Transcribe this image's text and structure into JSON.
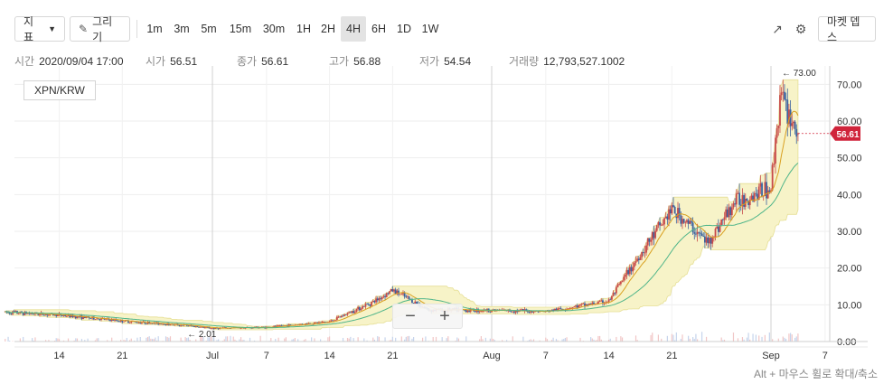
{
  "toolbar": {
    "indicator_label": "지표",
    "draw_label": "그리기",
    "intervals": [
      "1m",
      "3m",
      "5m",
      "15m",
      "30m",
      "1H",
      "2H",
      "4H",
      "6H",
      "1D",
      "1W"
    ],
    "active_interval": "4H",
    "market_depth_label": "마켓 뎁스"
  },
  "info": {
    "time_label": "시간",
    "time_value": "2020/09/04 17:00",
    "open_label": "시가",
    "open_value": "56.51",
    "close_label": "종가",
    "close_value": "56.61",
    "high_label": "고가",
    "high_value": "56.88",
    "low_label": "저가",
    "low_value": "54.54",
    "volume_label": "거래량",
    "volume_value": "12,793,527.1002"
  },
  "pair": "XPN/KRW",
  "footer_hint": "Alt + 마우스 휠로 확대/축소",
  "zoom": {
    "minus": "−",
    "plus": "+"
  },
  "colors": {
    "up": "#c84a4a",
    "down": "#3a62a0",
    "ma_fast": "#d9a020",
    "ma_slow": "#4fb58a",
    "cloud": "#f7f3c8",
    "price_tag": "#d0243b"
  },
  "chart_data": {
    "type": "candlestick",
    "y_ticks": [
      "0.00",
      "10.00",
      "20.00",
      "30.00",
      "40.00",
      "50.00",
      "60.00",
      "70.00"
    ],
    "ylim": [
      0,
      75
    ],
    "x_ticks": [
      "14",
      "21",
      "Jul",
      "7",
      "14",
      "21",
      "Aug",
      "7",
      "14",
      "21",
      "Sep",
      "7"
    ],
    "current_price": "56.61",
    "max_annotation": {
      "label": "73.00",
      "value": 73.0
    },
    "min_annotation": {
      "label": "2.01",
      "value": 2.01
    },
    "key_points": [
      {
        "date": "2020-06-08",
        "price": 8.0
      },
      {
        "date": "2020-06-14",
        "price": 7.2
      },
      {
        "date": "2020-06-21",
        "price": 5.6
      },
      {
        "date": "2020-06-28",
        "price": 4.4
      },
      {
        "date": "2020-07-01",
        "price": 3.6
      },
      {
        "date": "2020-07-07",
        "price": 3.9
      },
      {
        "date": "2020-07-14",
        "price": 5.4
      },
      {
        "date": "2020-07-19",
        "price": 11.0
      },
      {
        "date": "2020-07-21",
        "price": 14.0
      },
      {
        "date": "2020-07-25",
        "price": 8.6
      },
      {
        "date": "2020-08-01",
        "price": 8.5
      },
      {
        "date": "2020-08-07",
        "price": 8.2
      },
      {
        "date": "2020-08-14",
        "price": 11.0
      },
      {
        "date": "2020-08-17",
        "price": 22.0
      },
      {
        "date": "2020-08-21",
        "price": 36.0
      },
      {
        "date": "2020-08-25",
        "price": 27.0
      },
      {
        "date": "2020-08-28",
        "price": 38.0
      },
      {
        "date": "2020-09-01",
        "price": 42.0
      },
      {
        "date": "2020-09-02",
        "price": 67.0
      },
      {
        "date": "2020-09-04",
        "price": 56.61
      }
    ]
  }
}
